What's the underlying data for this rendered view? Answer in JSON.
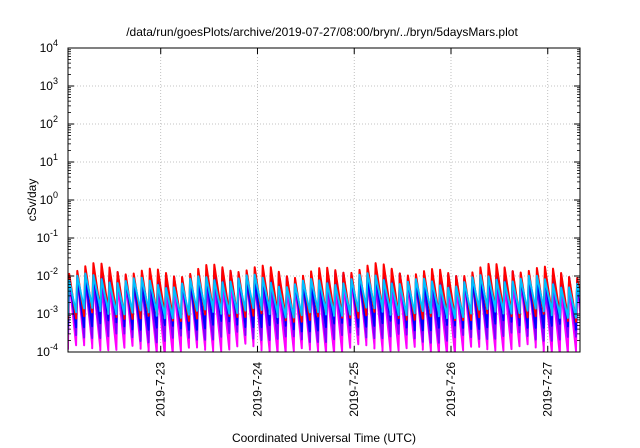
{
  "chart_data": {
    "type": "line",
    "title": "/data/run/goesPlots/archive/2019-07-27/08:00/bryn/../bryn/5daysMars.plot",
    "xlabel": "Coordinated Universal Time (UTC)",
    "ylabel": "cSv/day",
    "yscale": "log",
    "xlim": [
      "2019-07-22T01:00",
      "2019-07-27T08:00"
    ],
    "ylim": [
      0.0001,
      10000
    ],
    "x_ticks": [
      {
        "value": "2019-07-23",
        "label": "2019-7-23"
      },
      {
        "value": "2019-07-24",
        "label": "2019-7-24"
      },
      {
        "value": "2019-07-25",
        "label": "2019-7-25"
      },
      {
        "value": "2019-07-26",
        "label": "2019-7-26"
      },
      {
        "value": "2019-07-27",
        "label": "2019-7-27"
      }
    ],
    "y_ticks": [
      {
        "value": 0.0001,
        "base": "10",
        "exp": "-4"
      },
      {
        "value": 0.001,
        "base": "10",
        "exp": "-3"
      },
      {
        "value": 0.01,
        "base": "10",
        "exp": "-2"
      },
      {
        "value": 0.1,
        "base": "10",
        "exp": "-1"
      },
      {
        "value": 1,
        "base": "10",
        "exp": "0"
      },
      {
        "value": 10,
        "base": "10",
        "exp": "1"
      },
      {
        "value": 100,
        "base": "10",
        "exp": "2"
      },
      {
        "value": 1000,
        "base": "10",
        "exp": "3"
      },
      {
        "value": 10000,
        "base": "10",
        "exp": "4"
      }
    ],
    "grid": true,
    "legend": "none",
    "series": [
      {
        "color": "#ff00ff",
        "peak": 0.006,
        "trough": 0.00012
      },
      {
        "color": "#7f00ff",
        "peak": 0.008,
        "trough": 0.00025
      },
      {
        "color": "#0000ff",
        "peak": 0.01,
        "trough": 0.0005
      },
      {
        "color": "#ff0000",
        "peak": 0.014,
        "trough": 0.0009
      },
      {
        "color": "#00bfff",
        "peak": 0.0075,
        "trough": 0.0011
      }
    ]
  }
}
